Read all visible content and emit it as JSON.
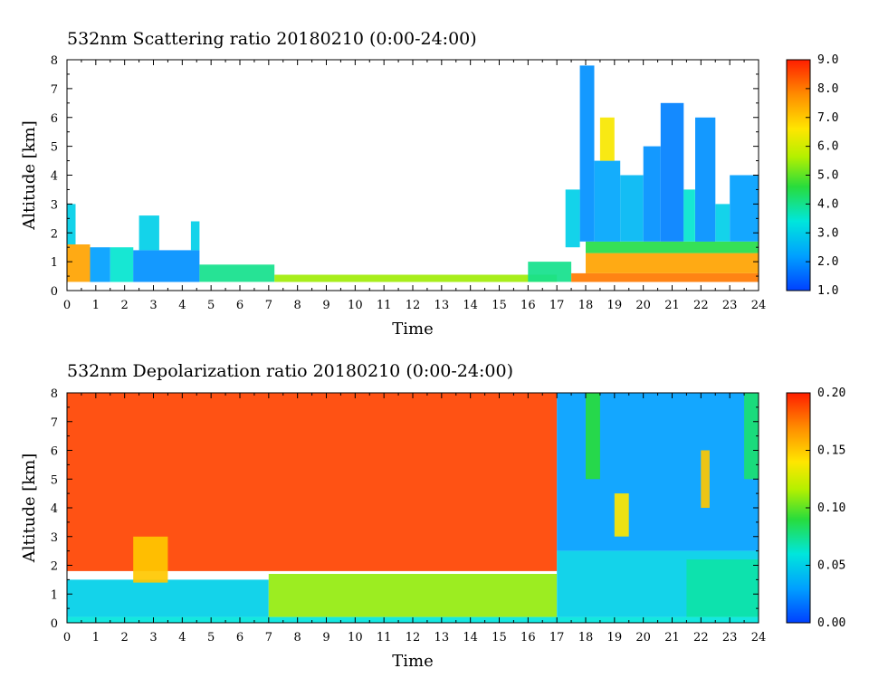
{
  "chart_data": [
    {
      "type": "heatmap",
      "title": "532nm Scattering ratio  20180210 (0:00-24:00)",
      "xlabel": "Time",
      "ylabel": "Altitude [km]",
      "xlim": [
        0,
        24
      ],
      "ylim": [
        0,
        8
      ],
      "x_ticks": [
        "0",
        "1",
        "2",
        "3",
        "4",
        "5",
        "6",
        "7",
        "8",
        "9",
        "10",
        "11",
        "12",
        "13",
        "14",
        "15",
        "16",
        "17",
        "18",
        "19",
        "20",
        "21",
        "22",
        "23",
        "24"
      ],
      "y_ticks": [
        "0",
        "1",
        "2",
        "3",
        "4",
        "5",
        "6",
        "7",
        "8"
      ],
      "colorbar": {
        "min": 1.0,
        "max": 9.0,
        "labels": [
          "1.0",
          "2.0",
          "3.0",
          "4.0",
          "5.0",
          "6.0",
          "7.0",
          "8.0",
          "9.0"
        ]
      },
      "blocks": [
        {
          "x0": 0.0,
          "x1": 0.8,
          "y0": 0.3,
          "y1": 1.6,
          "v": 7.5
        },
        {
          "x0": 0.8,
          "x1": 1.5,
          "y0": 0.3,
          "y1": 1.5,
          "v": 2.2
        },
        {
          "x0": 1.5,
          "x1": 2.3,
          "y0": 0.3,
          "y1": 1.5,
          "v": 3.5
        },
        {
          "x0": 2.3,
          "x1": 4.6,
          "y0": 0.3,
          "y1": 1.4,
          "v": 2.0
        },
        {
          "x0": 0.0,
          "x1": 0.3,
          "y0": 1.6,
          "y1": 3.0,
          "v": 3.0
        },
        {
          "x0": 2.5,
          "x1": 3.2,
          "y0": 1.4,
          "y1": 2.6,
          "v": 3.0
        },
        {
          "x0": 4.3,
          "x1": 4.6,
          "y0": 1.4,
          "y1": 2.4,
          "v": 3.0
        },
        {
          "x0": 4.6,
          "x1": 7.2,
          "y0": 0.3,
          "y1": 0.9,
          "v": 4.0
        },
        {
          "x0": 7.2,
          "x1": 17.0,
          "y0": 0.3,
          "y1": 0.55,
          "v": 5.5
        },
        {
          "x0": 16.0,
          "x1": 17.5,
          "y0": 0.3,
          "y1": 1.0,
          "v": 4.0
        },
        {
          "x0": 17.5,
          "x1": 24.0,
          "y0": 0.3,
          "y1": 0.6,
          "v": 8.0
        },
        {
          "x0": 18.0,
          "x1": 24.0,
          "y0": 0.6,
          "y1": 1.3,
          "v": 7.5
        },
        {
          "x0": 18.0,
          "x1": 24.0,
          "y0": 1.3,
          "y1": 1.7,
          "v": 4.5
        },
        {
          "x0": 17.8,
          "x1": 18.3,
          "y0": 1.7,
          "y1": 7.8,
          "v": 2.0
        },
        {
          "x0": 18.3,
          "x1": 19.2,
          "y0": 1.7,
          "y1": 4.5,
          "v": 2.3
        },
        {
          "x0": 19.2,
          "x1": 20.0,
          "y0": 1.7,
          "y1": 4.0,
          "v": 2.6
        },
        {
          "x0": 20.0,
          "x1": 20.6,
          "y0": 1.7,
          "y1": 5.0,
          "v": 2.0
        },
        {
          "x0": 20.6,
          "x1": 21.4,
          "y0": 1.7,
          "y1": 6.5,
          "v": 1.8
        },
        {
          "x0": 21.4,
          "x1": 21.8,
          "y0": 1.7,
          "y1": 3.5,
          "v": 3.5
        },
        {
          "x0": 21.8,
          "x1": 22.5,
          "y0": 1.7,
          "y1": 6.0,
          "v": 2.0
        },
        {
          "x0": 22.5,
          "x1": 23.0,
          "y0": 1.7,
          "y1": 3.0,
          "v": 3.0
        },
        {
          "x0": 23.0,
          "x1": 24.0,
          "y0": 1.7,
          "y1": 4.0,
          "v": 2.2
        },
        {
          "x0": 18.5,
          "x1": 19.0,
          "y0": 4.5,
          "y1": 6.0,
          "v": 6.5
        },
        {
          "x0": 17.3,
          "x1": 17.8,
          "y0": 1.5,
          "y1": 3.5,
          "v": 3.0
        }
      ]
    },
    {
      "type": "heatmap",
      "title": "532nm Depolarization ratio  20180210 (0:00-24:00)",
      "xlabel": "Time",
      "ylabel": "Altitude [km]",
      "xlim": [
        0,
        24
      ],
      "ylim": [
        0,
        8
      ],
      "x_ticks": [
        "0",
        "1",
        "2",
        "3",
        "4",
        "5",
        "6",
        "7",
        "8",
        "9",
        "10",
        "11",
        "12",
        "13",
        "14",
        "15",
        "16",
        "17",
        "18",
        "19",
        "20",
        "21",
        "22",
        "23",
        "24"
      ],
      "y_ticks": [
        "0",
        "1",
        "2",
        "3",
        "4",
        "5",
        "6",
        "7",
        "8"
      ],
      "colorbar": {
        "min": 0.0,
        "max": 0.2,
        "labels": [
          "0.00",
          "0.05",
          "0.10",
          "0.15",
          "0.20"
        ]
      },
      "blocks": [
        {
          "x0": 0.0,
          "x1": 17.0,
          "y0": 1.8,
          "y1": 8.0,
          "v": 0.19
        },
        {
          "x0": 0.0,
          "x1": 7.0,
          "y0": 0.2,
          "y1": 1.5,
          "v": 0.05
        },
        {
          "x0": 7.0,
          "x1": 17.0,
          "y0": 0.2,
          "y1": 1.7,
          "v": 0.11
        },
        {
          "x0": 0.0,
          "x1": 24.0,
          "y0": 0.0,
          "y1": 0.2,
          "v": 0.06
        },
        {
          "x0": 2.3,
          "x1": 3.5,
          "y0": 1.4,
          "y1": 3.0,
          "v": 0.15
        },
        {
          "x0": 17.0,
          "x1": 24.0,
          "y0": 2.5,
          "y1": 8.0,
          "v": 0.03
        },
        {
          "x0": 17.0,
          "x1": 24.0,
          "y0": 0.2,
          "y1": 2.5,
          "v": 0.05
        },
        {
          "x0": 21.5,
          "x1": 24.0,
          "y0": 0.2,
          "y1": 2.2,
          "v": 0.07
        },
        {
          "x0": 19.0,
          "x1": 19.5,
          "y0": 3.0,
          "y1": 4.5,
          "v": 0.14
        },
        {
          "x0": 22.0,
          "x1": 22.3,
          "y0": 4.0,
          "y1": 6.0,
          "v": 0.15
        },
        {
          "x0": 18.0,
          "x1": 18.5,
          "y0": 5.0,
          "y1": 8.0,
          "v": 0.09
        },
        {
          "x0": 23.5,
          "x1": 24.0,
          "y0": 5.0,
          "y1": 8.0,
          "v": 0.08
        }
      ]
    }
  ]
}
